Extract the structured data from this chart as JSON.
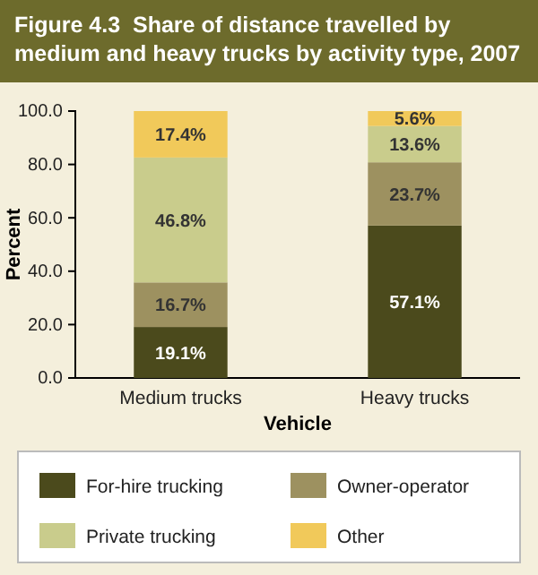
{
  "chart_data": {
    "type": "bar",
    "title": "Figure 4.3  Share of distance travelled by medium and heavy trucks by activity type, 2007",
    "xlabel": "Vehicle",
    "ylabel": "Percent",
    "stacked": true,
    "categories": [
      "Medium trucks",
      "Heavy trucks"
    ],
    "series": [
      {
        "name": "For-hire trucking",
        "color": "#4b4a1c",
        "values": [
          19.1,
          57.1
        ],
        "value_labels": [
          "19.1%",
          "57.1%"
        ]
      },
      {
        "name": "Owner-operator",
        "color": "#9d9160",
        "values": [
          16.7,
          23.7
        ],
        "value_labels": [
          "16.7%",
          "23.7%"
        ]
      },
      {
        "name": "Private trucking",
        "color": "#c9cc8c",
        "values": [
          46.8,
          13.6
        ],
        "value_labels": [
          "46.8%",
          "13.6%"
        ]
      },
      {
        "name": "Other",
        "color": "#f1c95a",
        "values": [
          17.4,
          5.6
        ],
        "value_labels": [
          "17.4%",
          "5.6%"
        ]
      }
    ],
    "ylim": [
      0,
      100
    ],
    "yticks": [
      {
        "value": 0,
        "label": "0.0"
      },
      {
        "value": 20,
        "label": "20.0"
      },
      {
        "value": 40,
        "label": "40.0"
      },
      {
        "value": 60,
        "label": "60.0"
      },
      {
        "value": 80,
        "label": "80.0"
      },
      {
        "value": 100,
        "label": "100.0"
      }
    ],
    "legend": "bottom"
  }
}
